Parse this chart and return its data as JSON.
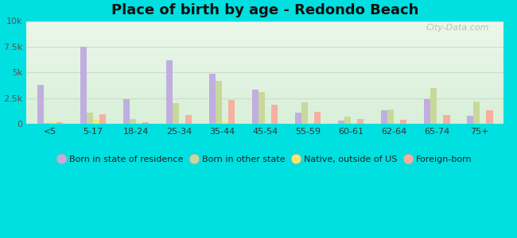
{
  "title": "Place of birth by age - Redondo Beach",
  "background_color": "#00e0e0",
  "categories": [
    "<5",
    "5-17",
    "18-24",
    "25-34",
    "35-44",
    "45-54",
    "55-59",
    "60-61",
    "62-64",
    "65-74",
    "75+"
  ],
  "series": {
    "born_in_state": {
      "label": "Born in state of residence",
      "color": "#c0aee0",
      "values": [
        3800,
        7500,
        2400,
        6200,
        4900,
        3300,
        1100,
        350,
        1300,
        2400,
        750
      ]
    },
    "born_other_state": {
      "label": "Born in other state",
      "color": "#c8d89a",
      "values": [
        120,
        1100,
        450,
        2000,
        4200,
        3100,
        2100,
        700,
        1400,
        3500,
        2200
      ]
    },
    "native_outside": {
      "label": "Native, outside of US",
      "color": "#f5e870",
      "values": [
        200,
        380,
        80,
        100,
        180,
        80,
        120,
        80,
        50,
        80,
        80
      ]
    },
    "foreign_born": {
      "label": "Foreign-born",
      "color": "#f5b0a0",
      "values": [
        180,
        950,
        180,
        850,
        2300,
        1850,
        1150,
        500,
        380,
        880,
        1350
      ]
    }
  },
  "ylim": [
    0,
    10000
  ],
  "yticks": [
    0,
    2500,
    5000,
    7500,
    10000
  ],
  "ytick_labels": [
    "0",
    "2.5k",
    "5k",
    "7.5k",
    "10k"
  ],
  "bar_width": 0.15,
  "legend_fontsize": 8,
  "title_fontsize": 13
}
